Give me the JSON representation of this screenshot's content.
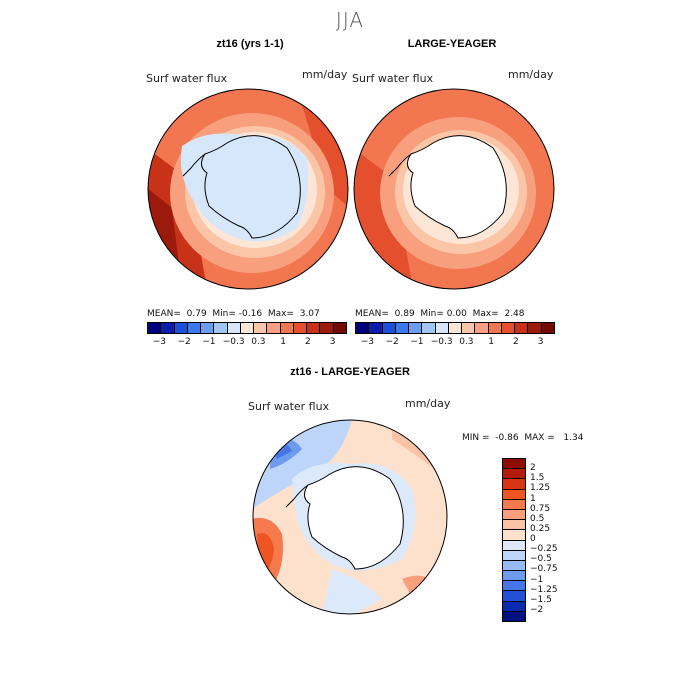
{
  "season": "JJA",
  "variable_label": "Surf water flux",
  "units": "mm/day",
  "panels": [
    {
      "title": "zt16 (yrs 1-1)",
      "mean": "0.79",
      "min": "-0.16",
      "max": "3.07"
    },
    {
      "title": "LARGE-YEAGER",
      "mean": "0.89",
      "min": "0.00",
      "max": "2.48"
    }
  ],
  "diff_panel": {
    "title": "zt16 - LARGE-YEAGER",
    "min": "-0.86",
    "max": "1.34"
  },
  "stat_labels": {
    "mean": "MEAN=",
    "min": "Min=",
    "max": "Max=",
    "min_upper": "MIN =",
    "max_upper": "MAX ="
  },
  "abs_colorbar": {
    "colors": [
      "#00007a",
      "#0a1ea8",
      "#1f4fd6",
      "#3c78ea",
      "#6a9ef0",
      "#a3c5f6",
      "#d6e7fb",
      "#fde6d6",
      "#fbc6a8",
      "#f8a07e",
      "#f27650",
      "#e4502d",
      "#c83219",
      "#9c1a0c",
      "#740a04"
    ],
    "tick_labels": [
      "−3",
      "−2",
      "−1",
      "−0.3",
      "0.3",
      "1",
      "2",
      "3"
    ]
  },
  "diff_colorbar": {
    "colors": [
      "#8e0e04",
      "#b21d0b",
      "#d83516",
      "#ef5523",
      "#f77a4c",
      "#f99f7b",
      "#fbc3a5",
      "#fde1cd",
      "#dce9fb",
      "#bcd5f8",
      "#97bbf4",
      "#6f9bef",
      "#4676e8",
      "#2450d6",
      "#0b2ab0",
      "#001282"
    ],
    "tick_labels": [
      "2",
      "1.5",
      "1.25",
      "1",
      "0.75",
      "0.5",
      "0.25",
      "0",
      "−0.25",
      "−0.5",
      "−0.75",
      "−1",
      "−1.25",
      "−1.5",
      "−2"
    ]
  },
  "map_colors": {
    "land": "#ffffff",
    "outline": "#000000",
    "ice_zt16": "#d6e7fb"
  }
}
